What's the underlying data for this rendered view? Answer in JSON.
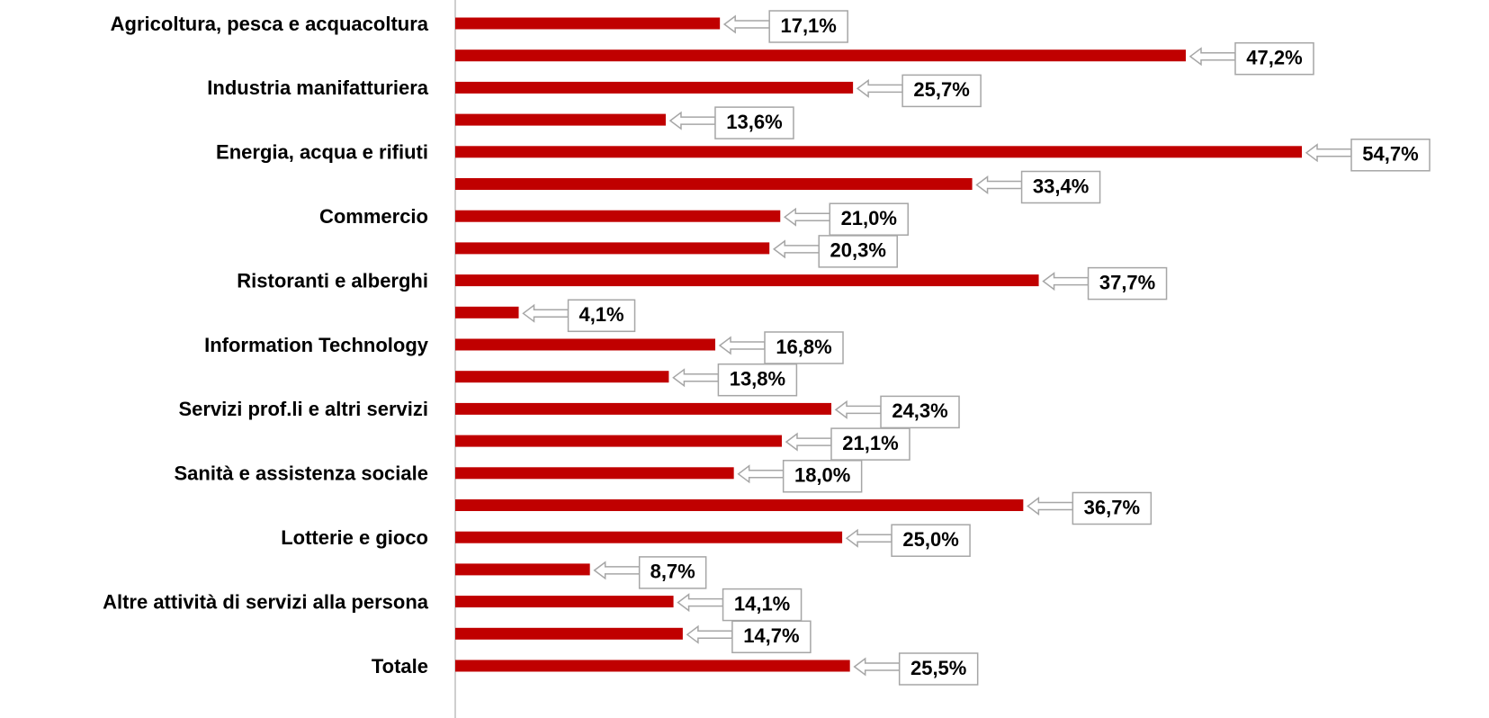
{
  "chart_data": {
    "type": "bar",
    "orientation": "horizontal",
    "color": "#c00000",
    "categories": [
      "Agricoltura, pesca e acquacoltura",
      null,
      "Industria manifatturiera",
      null,
      "Energia, acqua e rifiuti",
      null,
      "Commercio",
      null,
      "Ristoranti e alberghi",
      null,
      "Information Technology",
      null,
      "Servizi prof.li e altri servizi",
      null,
      "Sanità e assistenza sociale",
      null,
      "Lotterie e gioco",
      null,
      "Altre attività di servizi alla persona",
      null,
      "Totale"
    ],
    "values": [
      17.1,
      47.2,
      25.7,
      13.6,
      54.7,
      33.4,
      21.0,
      20.3,
      37.7,
      4.1,
      16.8,
      13.8,
      24.3,
      21.1,
      18.0,
      36.7,
      25.0,
      8.7,
      14.1,
      14.7,
      25.5
    ],
    "value_labels": [
      "17,1%",
      "47,2%",
      "25,7%",
      "13,6%",
      "54,7%",
      "33,4%",
      "21,0%",
      "20,3%",
      "37,7%",
      "4,1%",
      "16,8%",
      "13,8%",
      "24,3%",
      "21,1%",
      "18,0%",
      "36,7%",
      "25,0%",
      "8,7%",
      "14,1%",
      "14,7%",
      "25,5%"
    ]
  }
}
